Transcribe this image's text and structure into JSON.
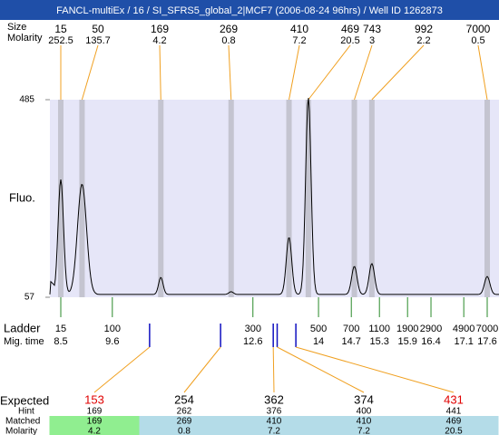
{
  "title": "FANCL-multiEx / 16 / SI_SFRS5_global_2|MCF7 (2006-08-24 96hrs) / Well ID 1262873",
  "peak_header": {
    "size_label": "Size",
    "molarity_label": "Molarity"
  },
  "peaks": [
    {
      "size": 15,
      "molarity": 252.5,
      "height": 312
    },
    {
      "size": 50,
      "molarity": 135.7,
      "height": 302
    },
    {
      "size": 169,
      "molarity": 4.2,
      "height": 100
    },
    {
      "size": 269,
      "molarity": 0.8,
      "height": 69
    },
    {
      "size": 410,
      "molarity": 7.2,
      "height": 187
    },
    {
      "size": 469,
      "molarity": 20.5,
      "height": 489
    },
    {
      "size": 743,
      "molarity": 3,
      "height": 124
    },
    {
      "size": 992,
      "molarity": 2.2,
      "height": 130
    },
    {
      "size": 7000,
      "molarity": 0.5,
      "height": 102
    }
  ],
  "y_axis": {
    "label": "Fluo.",
    "ticks": [
      485,
      57
    ]
  },
  "ladder": {
    "label": "Ladder",
    "mig_label": "Mig. time",
    "items": [
      {
        "size": 15,
        "time": 8.5
      },
      {
        "size": 100,
        "time": 9.6
      },
      {
        "size": 300,
        "time": 12.6
      },
      {
        "size": 500,
        "time": 14
      },
      {
        "size": 700,
        "time": 14.7
      },
      {
        "size": 1100,
        "time": 15.3
      },
      {
        "size": 1900,
        "time": 15.9
      },
      {
        "size": 2900,
        "time": 16.4
      },
      {
        "size": 4900,
        "time": 17.1
      },
      {
        "size": 7000,
        "time": 17.6
      }
    ]
  },
  "expected": {
    "label": "Expected",
    "hint_label": "Hint",
    "matched_label": "Matched",
    "molarity_label": "Molarity",
    "columns": [
      {
        "expected": 153,
        "hint": 169,
        "matched": 169,
        "molarity": 4.2,
        "flag": "red"
      },
      {
        "expected": 254,
        "hint": 262,
        "matched": 269,
        "molarity": 0.8,
        "flag": "black"
      },
      {
        "expected": 362,
        "hint": 376,
        "matched": 410,
        "molarity": 7.2,
        "flag": "black"
      },
      {
        "expected": 374,
        "hint": 400,
        "matched": 410,
        "molarity": 7.2,
        "flag": "black"
      },
      {
        "expected": 431,
        "hint": 441,
        "matched": 469,
        "molarity": 20.5,
        "flag": "red"
      }
    ]
  }
}
